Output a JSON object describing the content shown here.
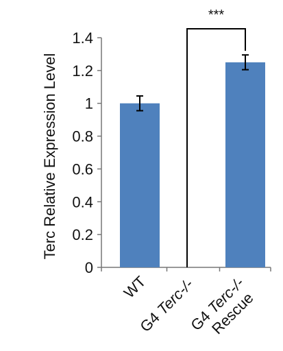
{
  "chart_data": {
    "type": "bar",
    "ylabel": "Terc Relative Expression Level",
    "ylim": [
      0,
      1.4
    ],
    "yticks": [
      "0",
      "0.2",
      "0.4",
      "0.6",
      "0.8",
      "1",
      "1.2",
      "1.4"
    ],
    "categories": [
      {
        "parts": [
          {
            "text": "WT",
            "italic": false
          }
        ]
      },
      {
        "parts": [
          {
            "text": "G4 ",
            "italic": false
          },
          {
            "text": "Terc-/-",
            "italic": true
          }
        ]
      },
      {
        "parts": [
          {
            "text": "G4  ",
            "italic": false
          },
          {
            "text": "Terc-/-",
            "italic": true
          }
        ],
        "line2": "Rescue"
      }
    ],
    "values": [
      1.0,
      0.0,
      1.25
    ],
    "errors": [
      0.045,
      0,
      0.045
    ],
    "bar_color": "#4F81BD",
    "significance": {
      "from": 1,
      "to": 2,
      "label": "***"
    }
  }
}
